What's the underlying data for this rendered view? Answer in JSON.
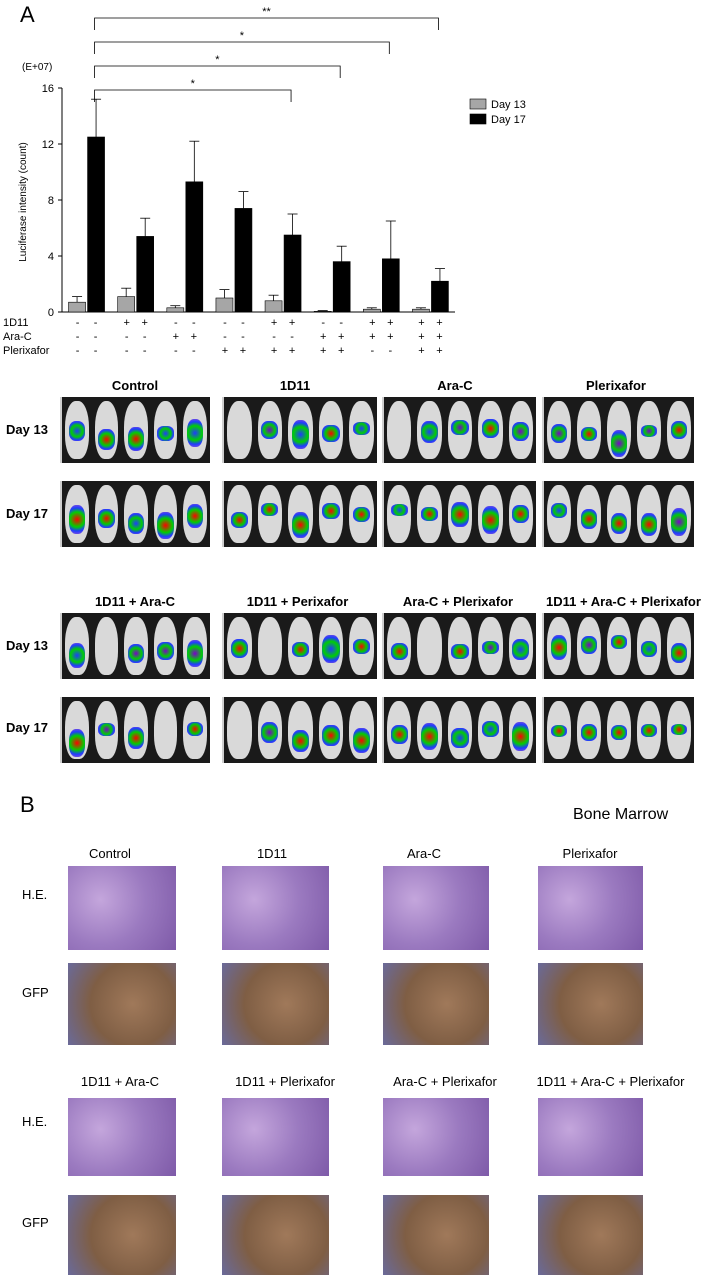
{
  "panel_a_letter": "A",
  "panel_b_letter": "B",
  "chart_data": {
    "type": "bar",
    "title": "",
    "ylabel": "Luciferase intensity  (count)",
    "yscale_label": "(E+07)",
    "ylim": [
      0,
      16
    ],
    "yticks": [
      0,
      4,
      8,
      12,
      16
    ],
    "legend_position": "top-right",
    "treatment_rows": [
      {
        "label": "1D11",
        "marks": [
          "-",
          "+",
          "-",
          "-",
          "+",
          "-",
          "+",
          "+"
        ]
      },
      {
        "label": "Ara-C",
        "marks": [
          "-",
          "-",
          "+",
          "-",
          "-",
          "+",
          "+",
          "+"
        ]
      },
      {
        "label": "Plerixafor",
        "marks": [
          "-",
          "-",
          "-",
          "+",
          "+",
          "+",
          "-",
          "+"
        ]
      }
    ],
    "series": [
      {
        "name": "Day 13",
        "color": "#a6a6a6",
        "values": [
          0.7,
          1.1,
          0.3,
          1.0,
          0.8,
          0.05,
          0.2,
          0.2
        ],
        "errors": [
          0.4,
          0.6,
          0.15,
          0.6,
          0.4,
          0.05,
          0.1,
          0.1
        ]
      },
      {
        "name": "Day 17",
        "color": "#000000",
        "values": [
          12.5,
          5.4,
          9.3,
          7.4,
          5.5,
          3.6,
          3.8,
          2.2
        ],
        "errors": [
          2.7,
          1.3,
          2.9,
          1.2,
          1.5,
          1.1,
          2.7,
          0.9
        ]
      }
    ],
    "significance": [
      {
        "from": 0,
        "to": 7,
        "label": "**"
      },
      {
        "from": 0,
        "to": 6,
        "label": "*"
      },
      {
        "from": 0,
        "to": 5,
        "label": "*"
      },
      {
        "from": 0,
        "to": 4,
        "label": "*"
      }
    ]
  },
  "imaging": {
    "top_titles": [
      "Control",
      "1D11",
      "Ara-C",
      "Plerixafor"
    ],
    "bottom_titles": [
      "1D11 + Ara-C",
      "1D11 + Perixafor",
      "Ara-C + Plerixafor",
      "1D11 + Ara-C + Plerixafor"
    ],
    "day_labels": [
      "Day 13",
      "Day 17"
    ]
  },
  "histology": {
    "heading": "Bone Marrow",
    "top_titles": [
      "Control",
      "1D11",
      "Ara-C",
      "Plerixafor"
    ],
    "bottom_titles": [
      "1D11 + Ara-C",
      "1D11 + Plerixafor",
      "Ara-C + Plerixafor",
      "1D11 + Ara-C + Plerixafor"
    ],
    "row_labels": [
      "H.E.",
      "GFP"
    ]
  }
}
